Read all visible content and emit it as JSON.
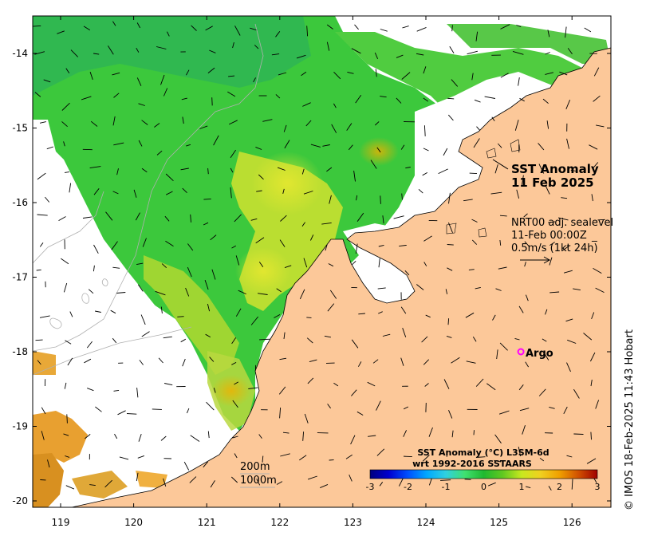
{
  "title": {
    "line1": "SST Anomaly",
    "line2": "11 Feb 2025"
  },
  "currents": {
    "line1": "NRT00 adj. sealevel",
    "line2": "11-Feb 00:00Z",
    "line3": "0.5m/s (1kt 24h)"
  },
  "argo": {
    "label": "Argo",
    "color": "#ff00ff",
    "lon": 125.3,
    "lat": -18.0
  },
  "depth_legend": {
    "a": "200m",
    "b": "1000m"
  },
  "colorbar": {
    "title1": "SST Anomaly (°C) L3SM-6d",
    "title2": "wrt 1992-2016 SSTAARS",
    "ticks": [
      "-3",
      "-2",
      "-1",
      "0",
      "1",
      "2",
      "3"
    ],
    "colors": [
      "#00007f",
      "#0000d0",
      "#0050ff",
      "#00a8ff",
      "#30d0e0",
      "#40e070",
      "#20b830",
      "#60c820",
      "#c8e820",
      "#f0d020",
      "#f0a000",
      "#d05000",
      "#a00000"
    ]
  },
  "axes": {
    "lon_ticks": [
      "119",
      "120",
      "121",
      "122",
      "123",
      "124",
      "125",
      "126"
    ],
    "lat_ticks": [
      "-14",
      "-15",
      "-16",
      "-17",
      "-18",
      "-19",
      "-20"
    ]
  },
  "credit": "© IMOS 18-Feb-2025 11:43 Hobart",
  "colors": {
    "land": "#fcc899",
    "no_data": "#ffffff",
    "frame": "#000000"
  }
}
